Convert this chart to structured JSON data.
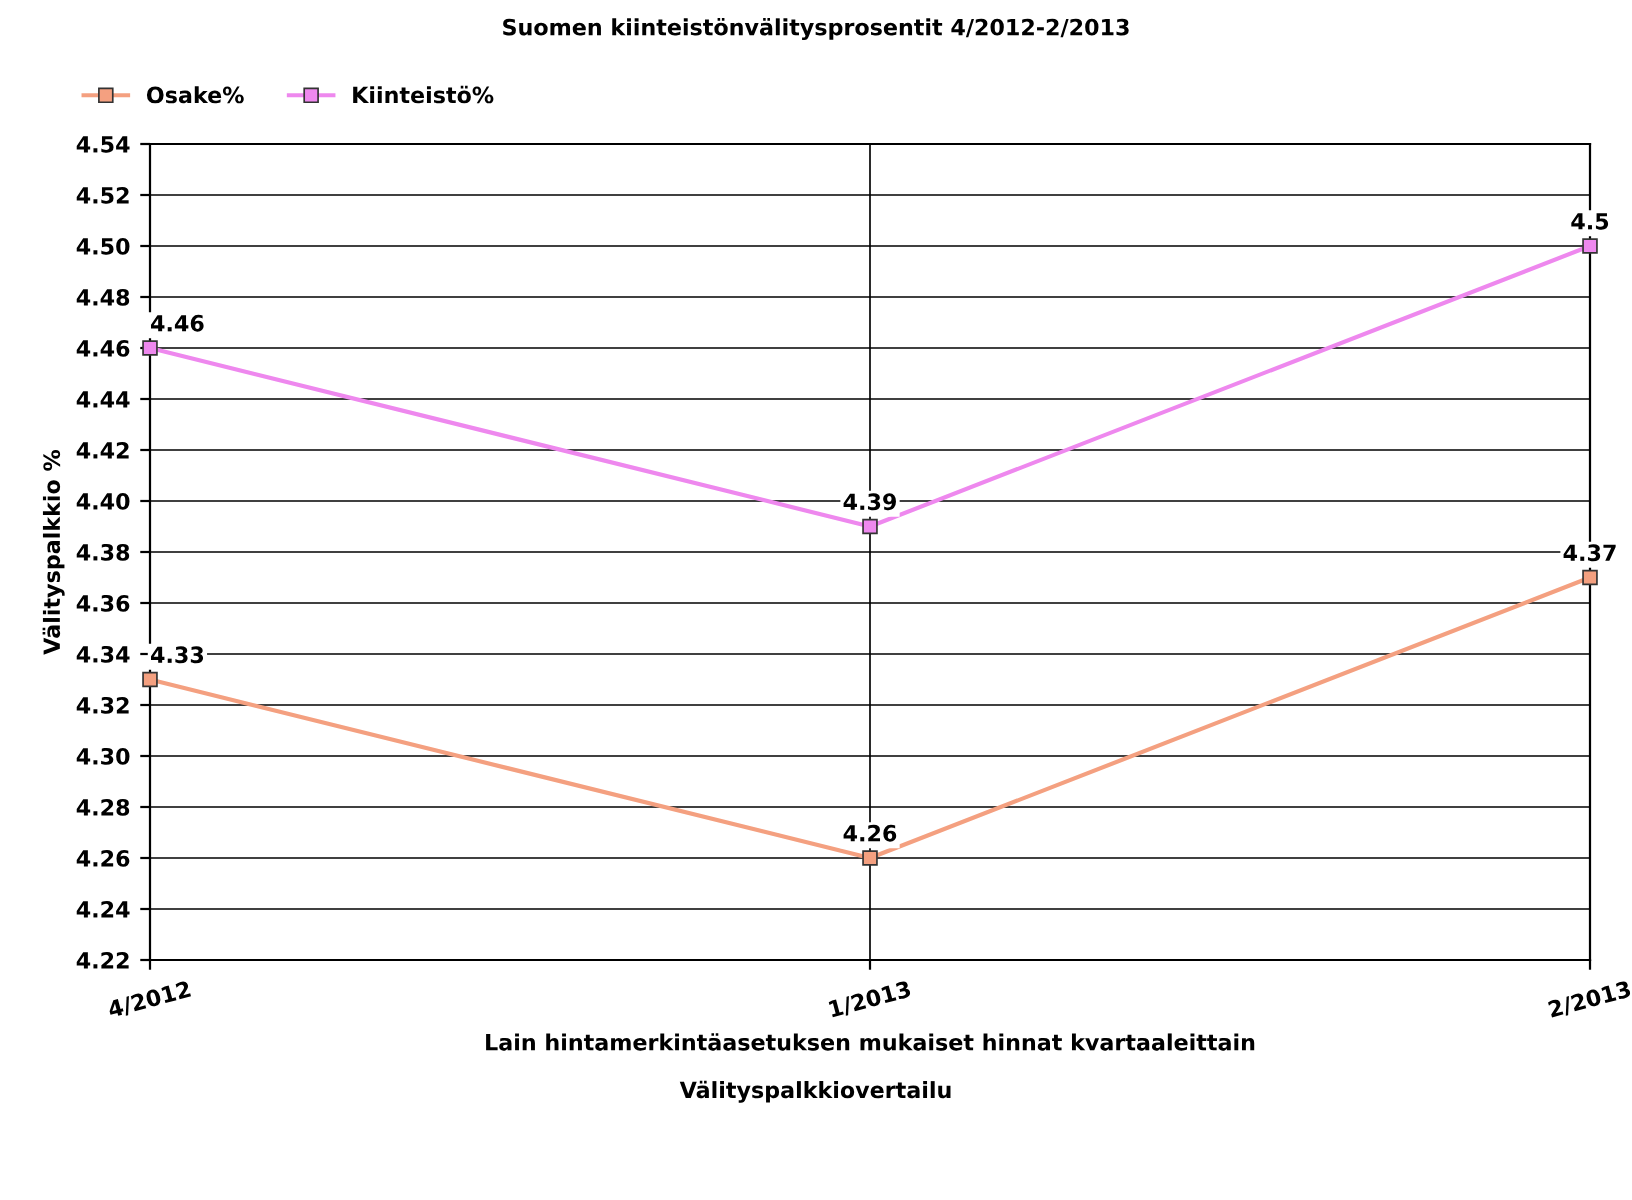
{
  "chart_data": {
    "type": "line",
    "title": "Suomen kiinteistönvälitysprosentit 4/2012-2/2013",
    "xlabel": "Lain hintamerkintäasetuksen mukaiset hinnat kvartaaleittain",
    "ylabel": "Välityspalkkio %",
    "annotations": [
      "Välityspalkkiovertailu"
    ],
    "categories": [
      "4/2012",
      "1/2013",
      "2/2013"
    ],
    "series": [
      {
        "name": "Osake%",
        "color": "#f4a080",
        "values": [
          4.33,
          4.26,
          4.37
        ]
      },
      {
        "name": "Kiinteistö%",
        "color": "#ee88ee",
        "values": [
          4.46,
          4.39,
          4.5
        ]
      }
    ],
    "ylim": [
      4.22,
      4.54
    ],
    "yticks": [
      4.22,
      4.24,
      4.26,
      4.28,
      {
        "value": 4.3,
        "label": "4.30"
      },
      4.32,
      4.34,
      4.36,
      4.38,
      {
        "value": 4.4,
        "label": "4.40"
      },
      4.42,
      4.44,
      4.46,
      4.48,
      {
        "value": 4.5,
        "label": "4.50"
      },
      4.52,
      4.54
    ],
    "grid": true,
    "legend": "top left",
    "marker": "square",
    "line_style": "solid",
    "data_labels": true
  }
}
